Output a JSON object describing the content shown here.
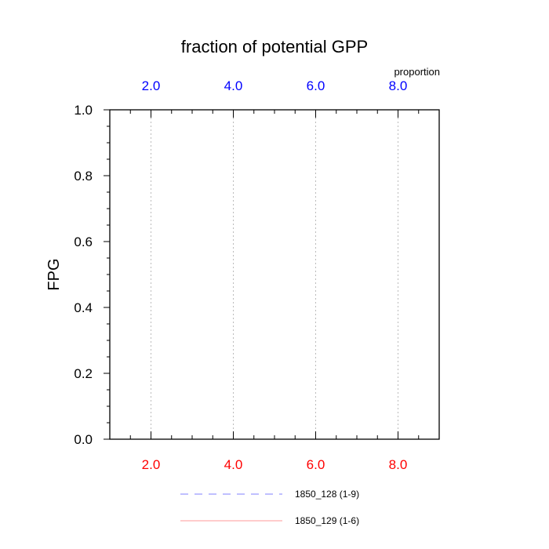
{
  "chart_data": {
    "type": "line",
    "title": "fraction of potential GPP",
    "ylabel": "FPG",
    "xlabel": "",
    "top_axis_label": "proportion",
    "xlim": [
      1.0,
      9.0
    ],
    "ylim": [
      0.0,
      1.0
    ],
    "bottom_ticks": [
      {
        "value": 2,
        "label": "2.0"
      },
      {
        "value": 4,
        "label": "4.0"
      },
      {
        "value": 6,
        "label": "6.0"
      },
      {
        "value": 8,
        "label": "8.0"
      }
    ],
    "top_ticks": [
      {
        "value": 2,
        "label": "2.0"
      },
      {
        "value": 4,
        "label": "4.0"
      },
      {
        "value": 6,
        "label": "6.0"
      },
      {
        "value": 8,
        "label": "8.0"
      }
    ],
    "y_ticks": [
      {
        "value": 0.0,
        "label": "0.0"
      },
      {
        "value": 0.2,
        "label": "0.2"
      },
      {
        "value": 0.4,
        "label": "0.4"
      },
      {
        "value": 0.6,
        "label": "0.6"
      },
      {
        "value": 0.8,
        "label": "0.8"
      },
      {
        "value": 1.0,
        "label": "1.0"
      }
    ],
    "grid": "vertical dotted at x ticks",
    "legend_position": "bottom",
    "series": [
      {
        "name": "1850_128 (1-9)",
        "color": "#8080ff",
        "style": "dashed",
        "values": []
      },
      {
        "name": "1850_129 (1-6)",
        "color": "#ff9999",
        "style": "solid",
        "values": []
      }
    ],
    "colors": {
      "bottom_tick_labels": "#ff0000",
      "top_tick_labels": "#0000ff",
      "frame": "#000000",
      "grid": "#bbbbbb"
    }
  }
}
